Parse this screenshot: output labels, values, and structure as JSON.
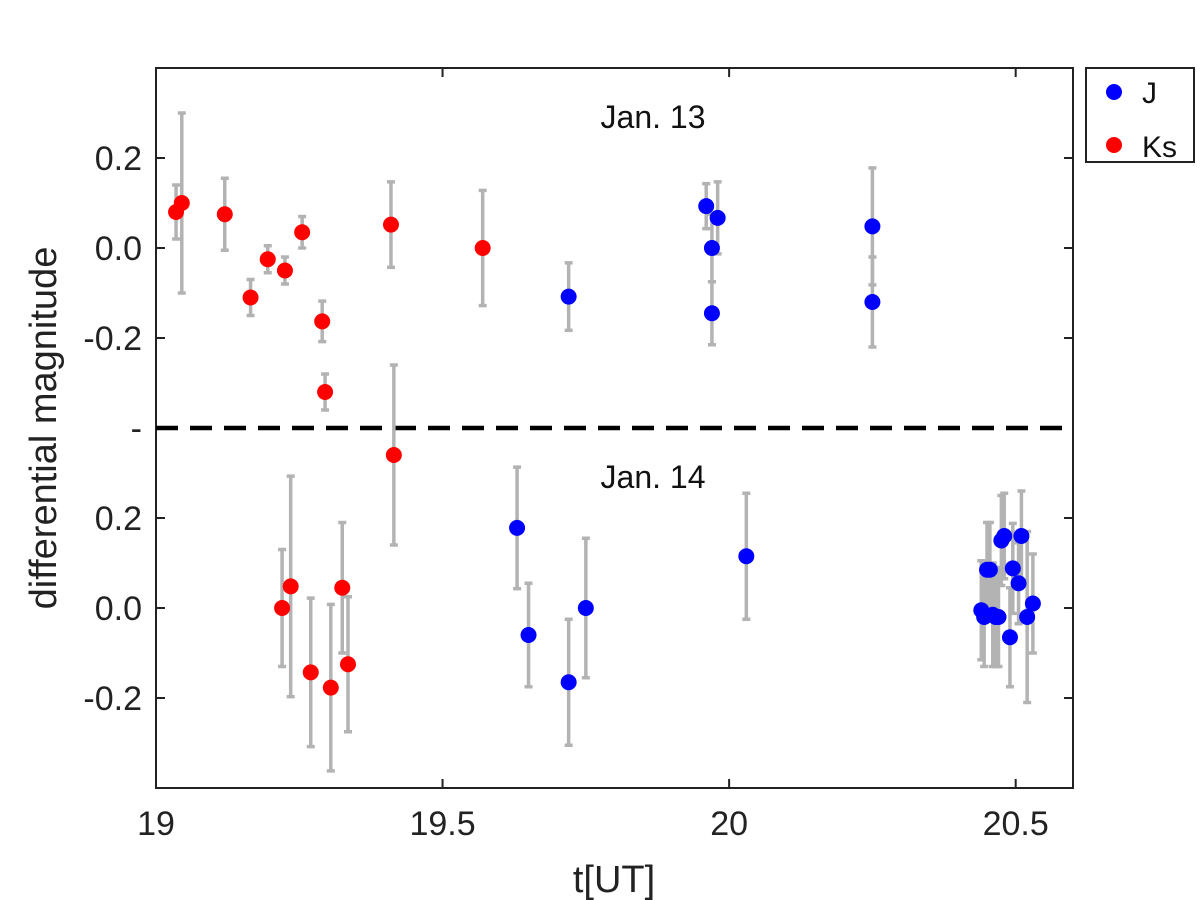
{
  "chart_data": {
    "type": "scatter",
    "title": "",
    "xlabel": "t[UT]",
    "ylabel": "differential magnitude",
    "xlim": [
      19.0,
      20.6
    ],
    "xticks": [
      19,
      19.5,
      20,
      20.5
    ],
    "xtick_labels": [
      "19",
      "19.5",
      "20",
      "20.5"
    ],
    "ytick_labels": [
      "0.2",
      "0.0",
      "-0.2",
      "-",
      "0.2",
      "0.0",
      "-0.2"
    ],
    "panels": [
      {
        "label": "Jan. 13",
        "ylim": [
          -0.4,
          0.4
        ],
        "yticks": [
          0.2,
          0.0,
          -0.2
        ]
      },
      {
        "label": "Jan. 14",
        "ylim": [
          -0.4,
          0.4
        ],
        "yticks": [
          0.2,
          0.0,
          -0.2
        ]
      }
    ],
    "error_bar_color": "#b3b3b3",
    "separator": "dashed",
    "legend": {
      "position": "outside-top-right",
      "entries": [
        "J",
        "Ks"
      ]
    },
    "series": [
      {
        "name": "J",
        "color": "#0000ff",
        "panels": {
          "Jan. 13": [
            [
              19.72,
              -0.108,
              0.075
            ],
            [
              19.96,
              0.093,
              0.05
            ],
            [
              19.97,
              0.0,
              0.075
            ],
            [
              19.97,
              -0.145,
              0.07
            ],
            [
              19.98,
              0.067,
              0.08
            ],
            [
              20.25,
              -0.12,
              0.1
            ],
            [
              20.25,
              0.048,
              0.13
            ]
          ],
          "Jan. 14": [
            [
              19.63,
              0.178,
              0.135
            ],
            [
              19.65,
              -0.06,
              0.115
            ],
            [
              19.72,
              -0.165,
              0.14
            ],
            [
              19.75,
              0.0,
              0.155
            ],
            [
              20.03,
              0.115,
              0.14
            ],
            [
              20.44,
              -0.005,
              0.11
            ],
            [
              20.445,
              -0.02,
              0.11
            ],
            [
              20.45,
              0.085,
              0.105
            ],
            [
              20.455,
              0.085,
              0.105
            ],
            [
              20.46,
              -0.015,
              0.115
            ],
            [
              20.465,
              -0.02,
              0.11
            ],
            [
              20.47,
              -0.02,
              0.11
            ],
            [
              20.475,
              0.15,
              0.1
            ],
            [
              20.48,
              0.16,
              0.095
            ],
            [
              20.49,
              -0.065,
              0.11
            ],
            [
              20.495,
              0.088,
              0.1
            ],
            [
              20.505,
              0.055,
              0.09
            ],
            [
              20.51,
              0.16,
              0.1
            ],
            [
              20.52,
              -0.02,
              0.19
            ],
            [
              20.53,
              0.01,
              0.11
            ]
          ]
        }
      },
      {
        "name": "Ks",
        "color": "#ff0000",
        "panels": {
          "Jan. 13": [
            [
              19.035,
              0.08,
              0.06
            ],
            [
              19.045,
              0.1,
              0.2
            ],
            [
              19.12,
              0.075,
              0.08
            ],
            [
              19.165,
              -0.11,
              0.04
            ],
            [
              19.195,
              -0.025,
              0.03
            ],
            [
              19.225,
              -0.05,
              0.03
            ],
            [
              19.255,
              0.035,
              0.035
            ],
            [
              19.29,
              -0.163,
              0.045
            ],
            [
              19.295,
              -0.32,
              0.04
            ],
            [
              19.41,
              0.052,
              0.095
            ],
            [
              19.57,
              0.0,
              0.128
            ]
          ],
          "Jan. 14": [
            [
              19.22,
              0.0,
              0.13
            ],
            [
              19.235,
              0.048,
              0.245
            ],
            [
              19.27,
              -0.143,
              0.165
            ],
            [
              19.305,
              -0.177,
              0.185
            ],
            [
              19.325,
              0.045,
              0.145
            ],
            [
              19.335,
              -0.125,
              0.15
            ],
            [
              19.415,
              0.34,
              0.2
            ]
          ]
        }
      }
    ]
  }
}
